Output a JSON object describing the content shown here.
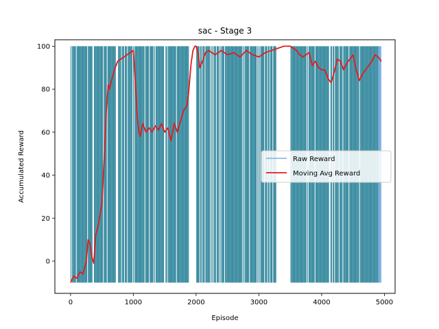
{
  "chart_data": {
    "type": "line",
    "title": "sac - Stage 3",
    "xlabel": "Episode",
    "ylabel": "Accumulated Reward",
    "xlim": [
      -250,
      5170
    ],
    "ylim": [
      -15,
      103
    ],
    "xticks": [
      0,
      1000,
      2000,
      3000,
      4000,
      5000
    ],
    "yticks": [
      0,
      20,
      40,
      60,
      80,
      100
    ],
    "grid": false,
    "legend_position": "center-right",
    "raw_reward_extent": {
      "min": -10,
      "max": 100,
      "first_episode": 0,
      "last_episode": 4950
    },
    "series": [
      {
        "name": "Raw Reward",
        "color": "#7cb1e1",
        "fill_color": "#3f8fa3",
        "style": "dense-oscillation",
        "gaps": [
          [
            1880,
            2000
          ],
          [
            3270,
            3500
          ]
        ]
      },
      {
        "name": "Moving Avg Reward",
        "color": "#e31a1c",
        "x": [
          0,
          50,
          100,
          150,
          200,
          250,
          280,
          310,
          340,
          370,
          400,
          450,
          500,
          540,
          570,
          600,
          620,
          650,
          700,
          750,
          800,
          850,
          900,
          950,
          1000,
          1030,
          1060,
          1090,
          1110,
          1150,
          1200,
          1250,
          1300,
          1350,
          1400,
          1450,
          1500,
          1550,
          1600,
          1650,
          1700,
          1750,
          1800,
          1850,
          1880,
          1920,
          1950,
          1980,
          2000,
          2030,
          2060,
          2100,
          2150,
          2200,
          2250,
          2300,
          2400,
          2500,
          2600,
          2700,
          2800,
          2900,
          3000,
          3100,
          3200,
          3300,
          3400,
          3500,
          3550,
          3600,
          3650,
          3700,
          3750,
          3800,
          3850,
          3900,
          3950,
          4000,
          4050,
          4100,
          4150,
          4200,
          4250,
          4300,
          4350,
          4400,
          4450,
          4500,
          4550,
          4600,
          4650,
          4700,
          4750,
          4800,
          4850,
          4900,
          4950
        ],
        "values": [
          -10,
          -7,
          -8,
          -5,
          -6,
          0,
          10,
          8,
          2,
          -1,
          12,
          18,
          27,
          50,
          70,
          82,
          80,
          84,
          89,
          93,
          94,
          95,
          96,
          97,
          98,
          85,
          68,
          60,
          58,
          64,
          60,
          62,
          60,
          63,
          61,
          64,
          60,
          62,
          56,
          64,
          60,
          65,
          70,
          72,
          78,
          92,
          98,
          100,
          100,
          97,
          90,
          93,
          97,
          98,
          97,
          96,
          98,
          96,
          97,
          95,
          98,
          96,
          95,
          97,
          98,
          99,
          100,
          100,
          99,
          98,
          96,
          95,
          96,
          97,
          91,
          93,
          90,
          89,
          89,
          85,
          83,
          88,
          94,
          93,
          89,
          92,
          94,
          96,
          89,
          84,
          87,
          89,
          91,
          93,
          96,
          95,
          93
        ]
      }
    ]
  }
}
